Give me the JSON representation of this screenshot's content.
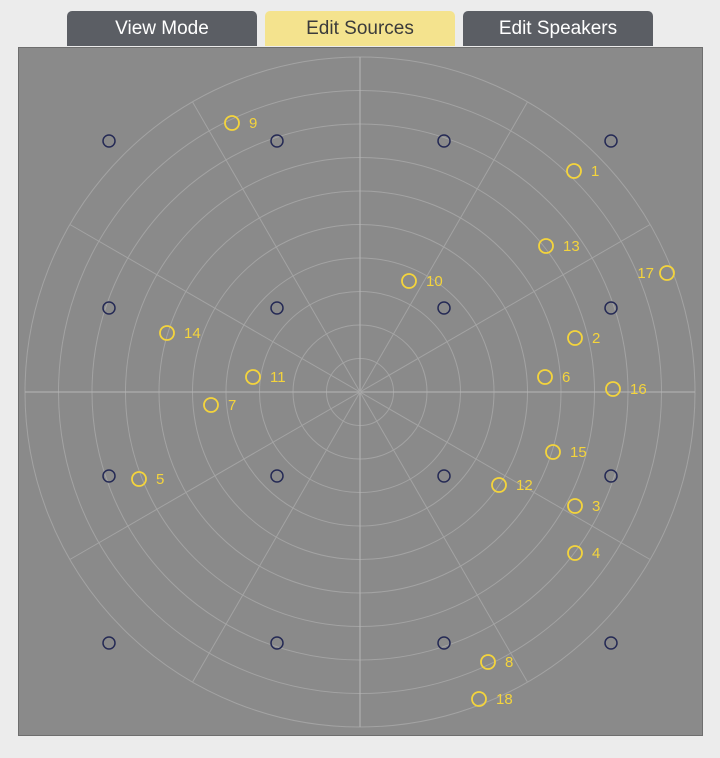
{
  "tabs": [
    "View Mode",
    "Edit Sources",
    "Edit Speakers"
  ],
  "sources": [
    "1",
    "9",
    "13",
    "17",
    "10",
    "14",
    "2",
    "11",
    "6",
    "16",
    "7",
    "15",
    "5",
    "12",
    "3",
    "4",
    "8",
    "18"
  ]
}
